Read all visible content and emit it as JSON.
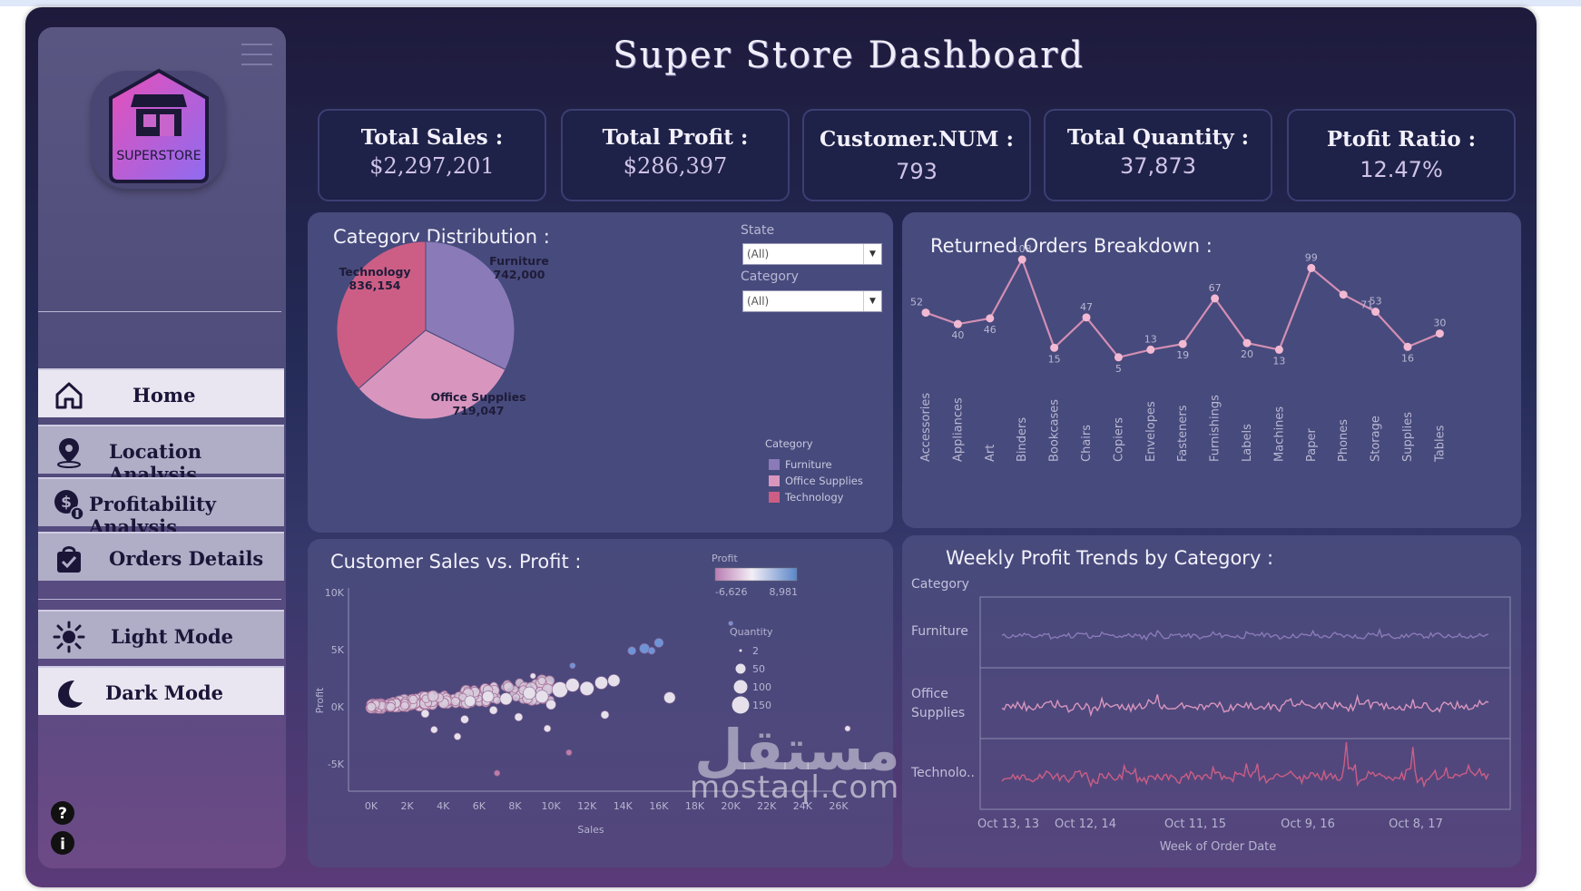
{
  "title": "Super Store  Dashboard",
  "logo": {
    "text": "SUPERSTORE"
  },
  "nav": {
    "home": "Home",
    "location": "Location Analysis",
    "profitability": "Profitability Analysis",
    "orders": "Orders Details",
    "light": "Light Mode",
    "dark": "Dark Mode"
  },
  "kpis": [
    {
      "label": "Total Sales :",
      "value": "$2,297,201"
    },
    {
      "label": "Total Profit :",
      "value": "$286,397"
    },
    {
      "label": "Customer.NUM :",
      "value": "793"
    },
    {
      "label": "Total Quantity :",
      "value": "37,873"
    },
    {
      "label": "Ptofit Ratio :",
      "value": "12.47%"
    }
  ],
  "category_panel": {
    "title": "Category Distribution  :",
    "filters": {
      "state_label": "State",
      "state_value": "(All)",
      "category_label": "Category",
      "category_value": "(All)"
    },
    "legend_title": "Category",
    "legend": [
      "Furniture",
      "Office Supplies",
      "Technology"
    ]
  },
  "returned_panel": {
    "title": "Returned Orders Breakdown :"
  },
  "scatter_panel": {
    "title": "Customer Sales vs. Profit :",
    "profit_legend": {
      "title": "Profit",
      "min": "-6,626",
      "max": "8,981"
    },
    "quantity_legend": {
      "title": "Quantity",
      "items": [
        "2",
        "50",
        "100",
        "150"
      ]
    }
  },
  "weekly_panel": {
    "title": "Weekly Profit Trends by Category :",
    "row_header": "Category",
    "rows": [
      "Furniture",
      "Office Supplies",
      "Technolo.."
    ],
    "x_ticks": [
      "Oct 13, 13",
      "Oct 12, 14",
      "Oct 11, 15",
      "Oct 9, 16",
      "Oct 8, 17"
    ],
    "x_label": "Week of Order Date"
  },
  "watermark": {
    "latin": "mostaql.com",
    "arabic": "مستقل"
  },
  "colors": {
    "furniture": "#8a7ab8",
    "office_supplies": "#d896be",
    "technology": "#cc5e85",
    "line": "#d28fb4"
  },
  "chart_data": [
    {
      "type": "pie",
      "categories": [
        "Technology",
        "Furniture",
        "Office Supplies"
      ],
      "values": [
        836154,
        742000,
        719047
      ],
      "labels": [
        "836,154",
        "742,000",
        "719,047"
      ]
    },
    {
      "type": "line",
      "categories": [
        "Accessories",
        "Appliances",
        "Art",
        "Binders",
        "Bookcases",
        "Chairs",
        "Copiers",
        "Envelopes",
        "Fasteners",
        "Furnishings",
        "Labels",
        "Machines",
        "Paper",
        "Phones",
        "Storage",
        "Supplies",
        "Tables"
      ],
      "values": [
        52,
        40,
        46,
        108,
        15,
        47,
        5,
        13,
        19,
        67,
        20,
        13,
        99,
        71,
        53,
        16,
        30
      ]
    },
    {
      "type": "scatter",
      "xlabel": "Sales",
      "ylabel": "Profit",
      "x_ticks": [
        "0K",
        "2K",
        "4K",
        "6K",
        "8K",
        "10K",
        "12K",
        "14K",
        "16K",
        "18K",
        "20K",
        "22K",
        "24K",
        "26K"
      ],
      "y_ticks": [
        "10K",
        "5K",
        "0K",
        "-5K"
      ],
      "xlim": [
        0,
        26000
      ],
      "ylim": [
        -7000,
        10000
      ],
      "points": [
        [
          10500,
          1500,
          150
        ],
        [
          12000,
          1600,
          120
        ],
        [
          12800,
          2100,
          100
        ],
        [
          13500,
          2300,
          90
        ],
        [
          11200,
          1900,
          110
        ],
        [
          9500,
          900,
          100
        ],
        [
          8800,
          1200,
          95
        ],
        [
          7500,
          700,
          90
        ],
        [
          6500,
          900,
          80
        ],
        [
          5500,
          500,
          70
        ],
        [
          14500,
          4900,
          40
        ],
        [
          15200,
          5100,
          60
        ],
        [
          16000,
          5600,
          50
        ],
        [
          15600,
          4900,
          30
        ],
        [
          20000,
          7300,
          10
        ],
        [
          16600,
          800,
          80
        ],
        [
          13000,
          -700,
          40
        ],
        [
          9800,
          -1900,
          30
        ],
        [
          7000,
          -5800,
          20
        ],
        [
          11000,
          -4000,
          20
        ],
        [
          26500,
          -1900,
          20
        ],
        [
          9000,
          2700,
          20
        ],
        [
          11200,
          3600,
          20
        ],
        [
          4800,
          -2600,
          30
        ],
        [
          3500,
          -2000,
          30
        ],
        [
          3000,
          -600,
          40
        ],
        [
          5200,
          -1100,
          40
        ],
        [
          6800,
          -300,
          40
        ],
        [
          8200,
          -900,
          40
        ],
        [
          10000,
          200,
          60
        ]
      ]
    },
    {
      "type": "line",
      "series": [
        {
          "name": "Furniture",
          "values": [
            0,
            2,
            -1,
            3,
            -2,
            1,
            4,
            -3,
            2,
            0,
            1,
            -2,
            5,
            -1,
            2,
            0,
            -3,
            3,
            1,
            -1,
            2,
            4,
            -2,
            0,
            1,
            3,
            -1,
            2,
            0,
            -2,
            4,
            1,
            -1,
            2,
            0,
            3,
            -2,
            1,
            0,
            2
          ]
        },
        {
          "name": "Office Supplies",
          "values": [
            0,
            3,
            -2,
            4,
            6,
            -4,
            2,
            -6,
            8,
            1,
            -2,
            3,
            9,
            -3,
            2,
            1,
            -1,
            4,
            -2,
            2,
            1,
            3,
            -2,
            8,
            2,
            -1,
            3,
            2,
            -2,
            10,
            3,
            1,
            -2,
            5,
            2,
            -3,
            4,
            2,
            -1,
            6
          ]
        },
        {
          "name": "Technolo..",
          "values": [
            0,
            2,
            -3,
            4,
            1,
            -2,
            6,
            -5,
            3,
            1,
            7,
            -2,
            2,
            0,
            -3,
            4,
            1,
            6,
            -1,
            2,
            9,
            -4,
            3,
            7,
            -2,
            5,
            2,
            1,
            24,
            -6,
            4,
            2,
            1,
            22,
            -5,
            3,
            6,
            2,
            9,
            4
          ]
        }
      ]
    }
  ]
}
